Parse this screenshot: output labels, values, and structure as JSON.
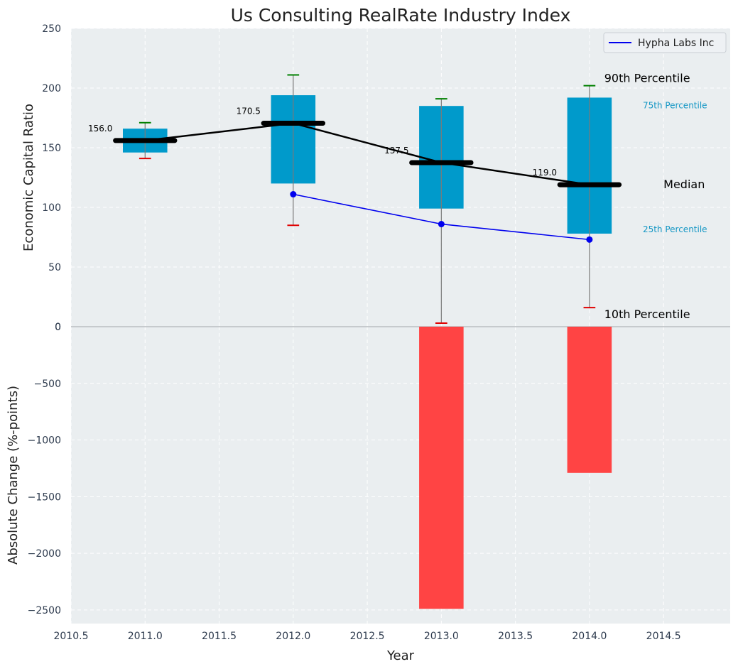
{
  "chart_data": [
    {
      "type": "box",
      "title": "Us Consulting RealRate Industry Index",
      "ylabel": "Economic Capital Ratio",
      "xlim": [
        2010.5,
        2014.95
      ],
      "ylim": [
        0,
        250
      ],
      "yticks": [
        0,
        50,
        100,
        150,
        200,
        250
      ],
      "grid": true,
      "legend": {
        "placement": "top-right",
        "entries": [
          "Hypha Labs Inc"
        ]
      },
      "colors": {
        "box": "#009acb",
        "median_line": "#000000",
        "company": "#0000ee",
        "p90_cap": "#008000",
        "p10_cap": "#e00000"
      },
      "boxes": [
        {
          "x": 2011,
          "p10": 141,
          "p25": 146,
          "median": 156,
          "p75": 166,
          "p90": 171,
          "median_label": "156.0"
        },
        {
          "x": 2012,
          "p10": 85,
          "p25": 120,
          "median": 170.5,
          "p75": 194,
          "p90": 211,
          "median_label": "170.5"
        },
        {
          "x": 2013,
          "p10": 3,
          "p25": 99,
          "median": 137.5,
          "p75": 185,
          "p90": 191,
          "median_label": "137.5"
        },
        {
          "x": 2014,
          "p10": 16,
          "p25": 78,
          "median": 119,
          "p75": 192,
          "p90": 202,
          "median_label": "119.0"
        }
      ],
      "series": [
        {
          "name": "Hypha Labs Inc",
          "x": [
            2012,
            2013,
            2014
          ],
          "values": [
            111,
            86,
            73
          ]
        }
      ],
      "annotations": [
        {
          "text": "90th Percentile",
          "x": 2014.1,
          "y": 208,
          "size": "large"
        },
        {
          "text": "75th Percentile",
          "x": 2014.36,
          "y": 186,
          "size": "small"
        },
        {
          "text": "Median",
          "x": 2014.5,
          "y": 119,
          "size": "large"
        },
        {
          "text": "25th Percentile",
          "x": 2014.36,
          "y": 82,
          "size": "small"
        },
        {
          "text": "10th Percentile",
          "x": 2014.1,
          "y": 10,
          "size": "large"
        }
      ]
    },
    {
      "type": "bar",
      "ylabel": "Absolute Change (%-points)",
      "xlabel": "Year",
      "xlim": [
        2010.5,
        2014.95
      ],
      "ylim": [
        -2620,
        0
      ],
      "xticks": [
        2010.5,
        2011.0,
        2011.5,
        2012.0,
        2012.5,
        2013.0,
        2013.5,
        2014.0,
        2014.5
      ],
      "xtick_labels": [
        "2010.5",
        "2011.0",
        "2011.5",
        "2012.0",
        "2012.5",
        "2013.0",
        "2013.5",
        "2014.0",
        "2014.5"
      ],
      "yticks": [
        0,
        -500,
        -1000,
        -1500,
        -2000,
        -2500
      ],
      "ytick_labels": [
        "0",
        "−500",
        "−1000",
        "−1500",
        "−2000",
        "−2500"
      ],
      "grid": true,
      "colors": {
        "bar": "#ff3c3c"
      },
      "bars": [
        {
          "x": 2013,
          "value": -2490
        },
        {
          "x": 2014,
          "value": -1290
        }
      ]
    }
  ]
}
